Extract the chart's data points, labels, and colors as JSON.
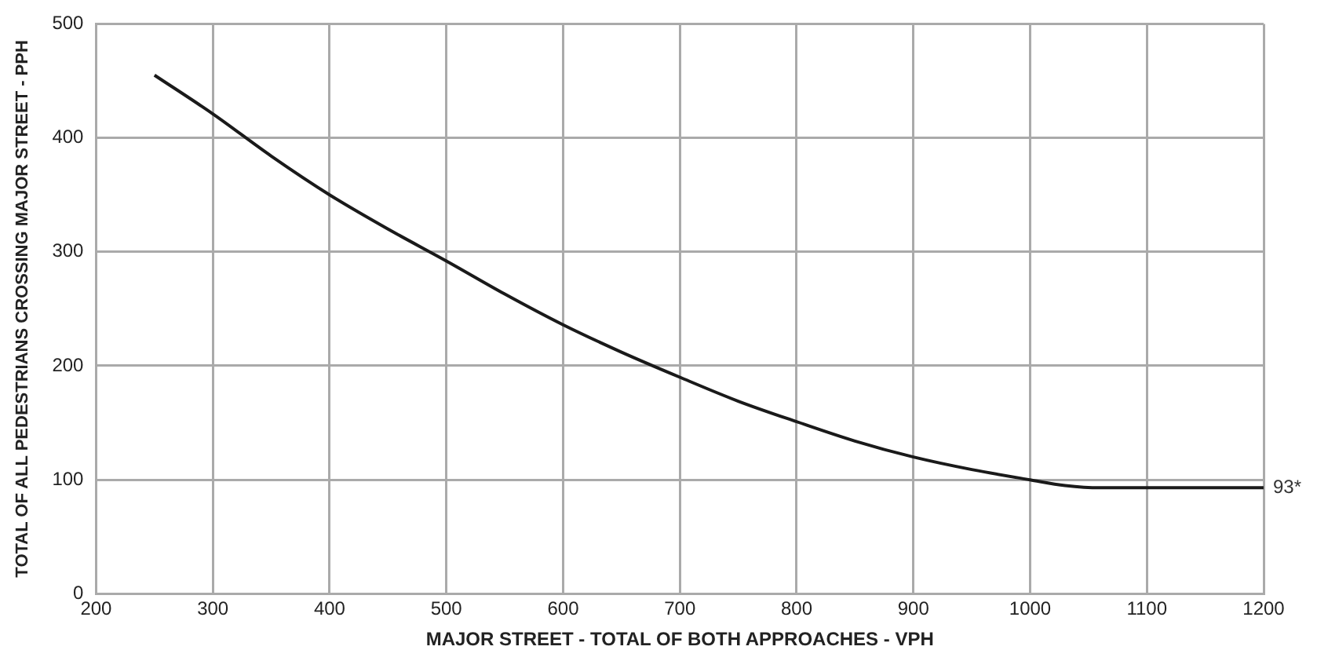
{
  "chart_data": {
    "type": "line",
    "xlabel": "MAJOR STREET - TOTAL OF BOTH APPROACHES - VPH",
    "ylabel": "TOTAL OF ALL PEDESTRIANS CROSSING MAJOR STREET - PPH",
    "x": [
      250,
      300,
      350,
      400,
      450,
      500,
      550,
      600,
      650,
      700,
      750,
      800,
      850,
      900,
      950,
      1000,
      1030,
      1060,
      1100,
      1150,
      1200
    ],
    "series": [
      {
        "color": "#1a1a1a",
        "values": [
          455,
          421,
          384,
          350,
          320,
          292,
          263,
          236,
          212,
          190,
          169,
          151,
          134,
          120,
          109,
          100,
          95,
          93,
          93,
          93,
          93
        ]
      }
    ],
    "xlim": [
      200,
      1200
    ],
    "xticks": [
      200,
      300,
      400,
      500,
      600,
      700,
      800,
      900,
      1000,
      1100,
      1200
    ],
    "ylim": [
      0,
      500
    ],
    "yticks": [
      0,
      100,
      200,
      300,
      400,
      500
    ],
    "grid": true,
    "legend": false,
    "marker": "none",
    "line_style": "solid",
    "annotations": [
      {
        "text": "93*",
        "x": 1200,
        "y": 93
      }
    ]
  }
}
